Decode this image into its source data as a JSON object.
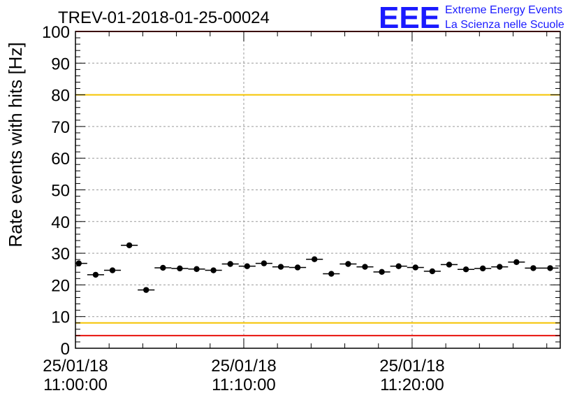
{
  "title": "TREV-01-2018-01-25-00024",
  "logo": {
    "mark": "EEE",
    "line1": "Extreme Energy Events",
    "line2": "La Scienza nelle Scuole"
  },
  "colors": {
    "marker": "#000000",
    "threshold_yellow": "#f5c400",
    "threshold_red": "#e8120c",
    "grid": "#9a9a9a",
    "logo": "#1a1aff"
  },
  "chart_data": {
    "type": "scatter",
    "ylabel": "Rate events with hits [Hz]",
    "xlabel": "",
    "ylim": [
      0,
      100
    ],
    "yticks": [
      0,
      10,
      20,
      30,
      40,
      50,
      60,
      70,
      80,
      90,
      100
    ],
    "x_unit": "minutes after 25/01/18 11:00:00",
    "xlim": [
      0,
      28.8
    ],
    "xtick_labels": [
      {
        "x": 0,
        "date": "25/01/18",
        "time": "11:00:00"
      },
      {
        "x": 10,
        "date": "25/01/18",
        "time": "11:10:00"
      },
      {
        "x": 20,
        "date": "25/01/18",
        "time": "11:20:00"
      }
    ],
    "bin_width": 1,
    "x": [
      0.2,
      1.2,
      2.2,
      3.2,
      4.2,
      5.2,
      6.2,
      7.2,
      8.2,
      9.2,
      10.2,
      11.2,
      12.2,
      13.2,
      14.2,
      15.2,
      16.2,
      17.2,
      18.2,
      19.2,
      20.2,
      21.2,
      22.2,
      23.2,
      24.2,
      25.2,
      26.2,
      27.2,
      28.2
    ],
    "values": [
      26.8,
      23.2,
      24.6,
      32.5,
      18.4,
      25.4,
      25.2,
      25.0,
      24.6,
      26.6,
      25.9,
      26.8,
      25.7,
      25.5,
      28.1,
      23.5,
      26.6,
      25.7,
      24.1,
      25.9,
      25.5,
      24.3,
      26.4,
      24.9,
      25.2,
      25.7,
      27.2,
      25.3,
      25.3
    ],
    "grid": true,
    "hlines": [
      {
        "y": 80,
        "color": "#f5c400"
      },
      {
        "y": 8,
        "color": "#f5c400"
      },
      {
        "y": 100,
        "color": "#e8120c"
      },
      {
        "y": 4,
        "color": "#e8120c"
      }
    ]
  }
}
